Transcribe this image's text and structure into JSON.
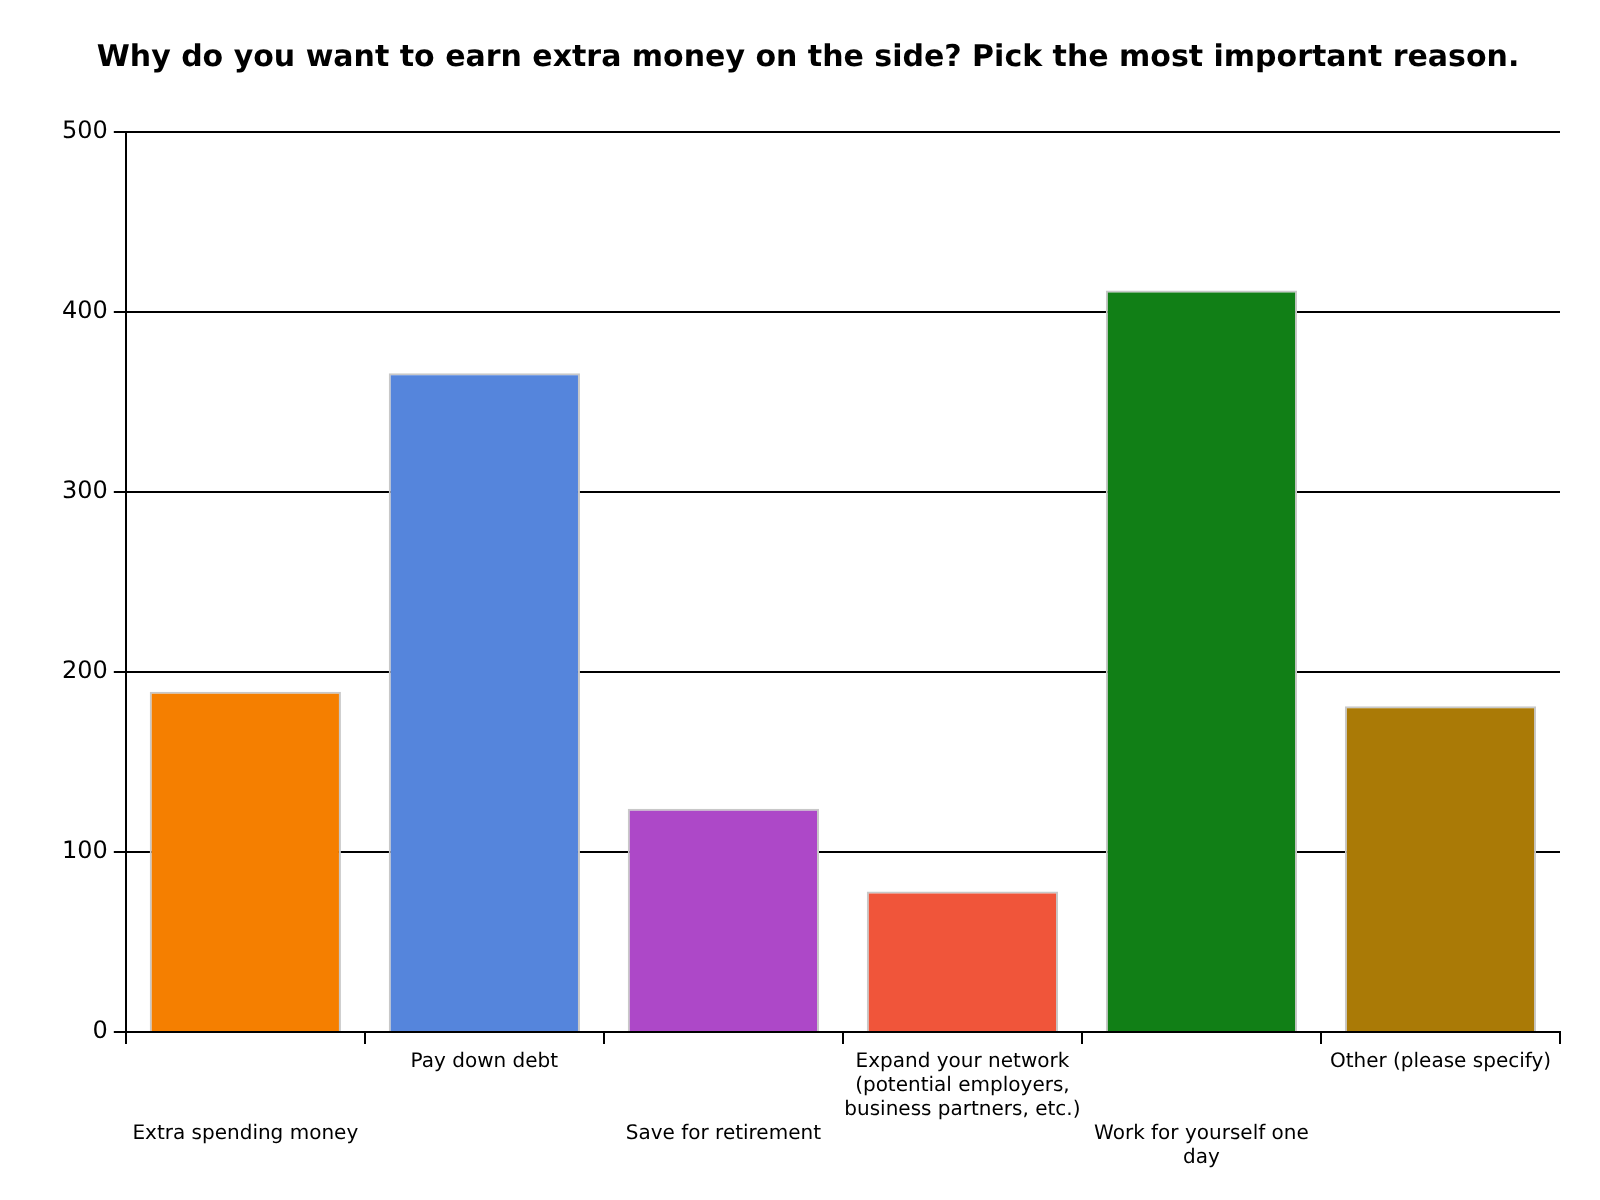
{
  "chart_data": {
    "type": "bar",
    "title": "Why do you want to earn extra money on the side? Pick the most important reason.",
    "categories": [
      "Extra spending money",
      "Pay down debt",
      "Save for retirement",
      "Expand your network (potential employers, business partners, etc.)",
      "Work for yourself one day",
      "Other (please specify)"
    ],
    "values": [
      189,
      366,
      124,
      78,
      412,
      181
    ],
    "colors": [
      "#f57f00",
      "#5585dc",
      "#ad48c8",
      "#f0553a",
      "#117f16",
      "#aa7a06"
    ],
    "ylim": [
      0,
      500
    ],
    "yticks": [
      0,
      100,
      200,
      300,
      400,
      500
    ],
    "grid": "y",
    "legend": false
  }
}
